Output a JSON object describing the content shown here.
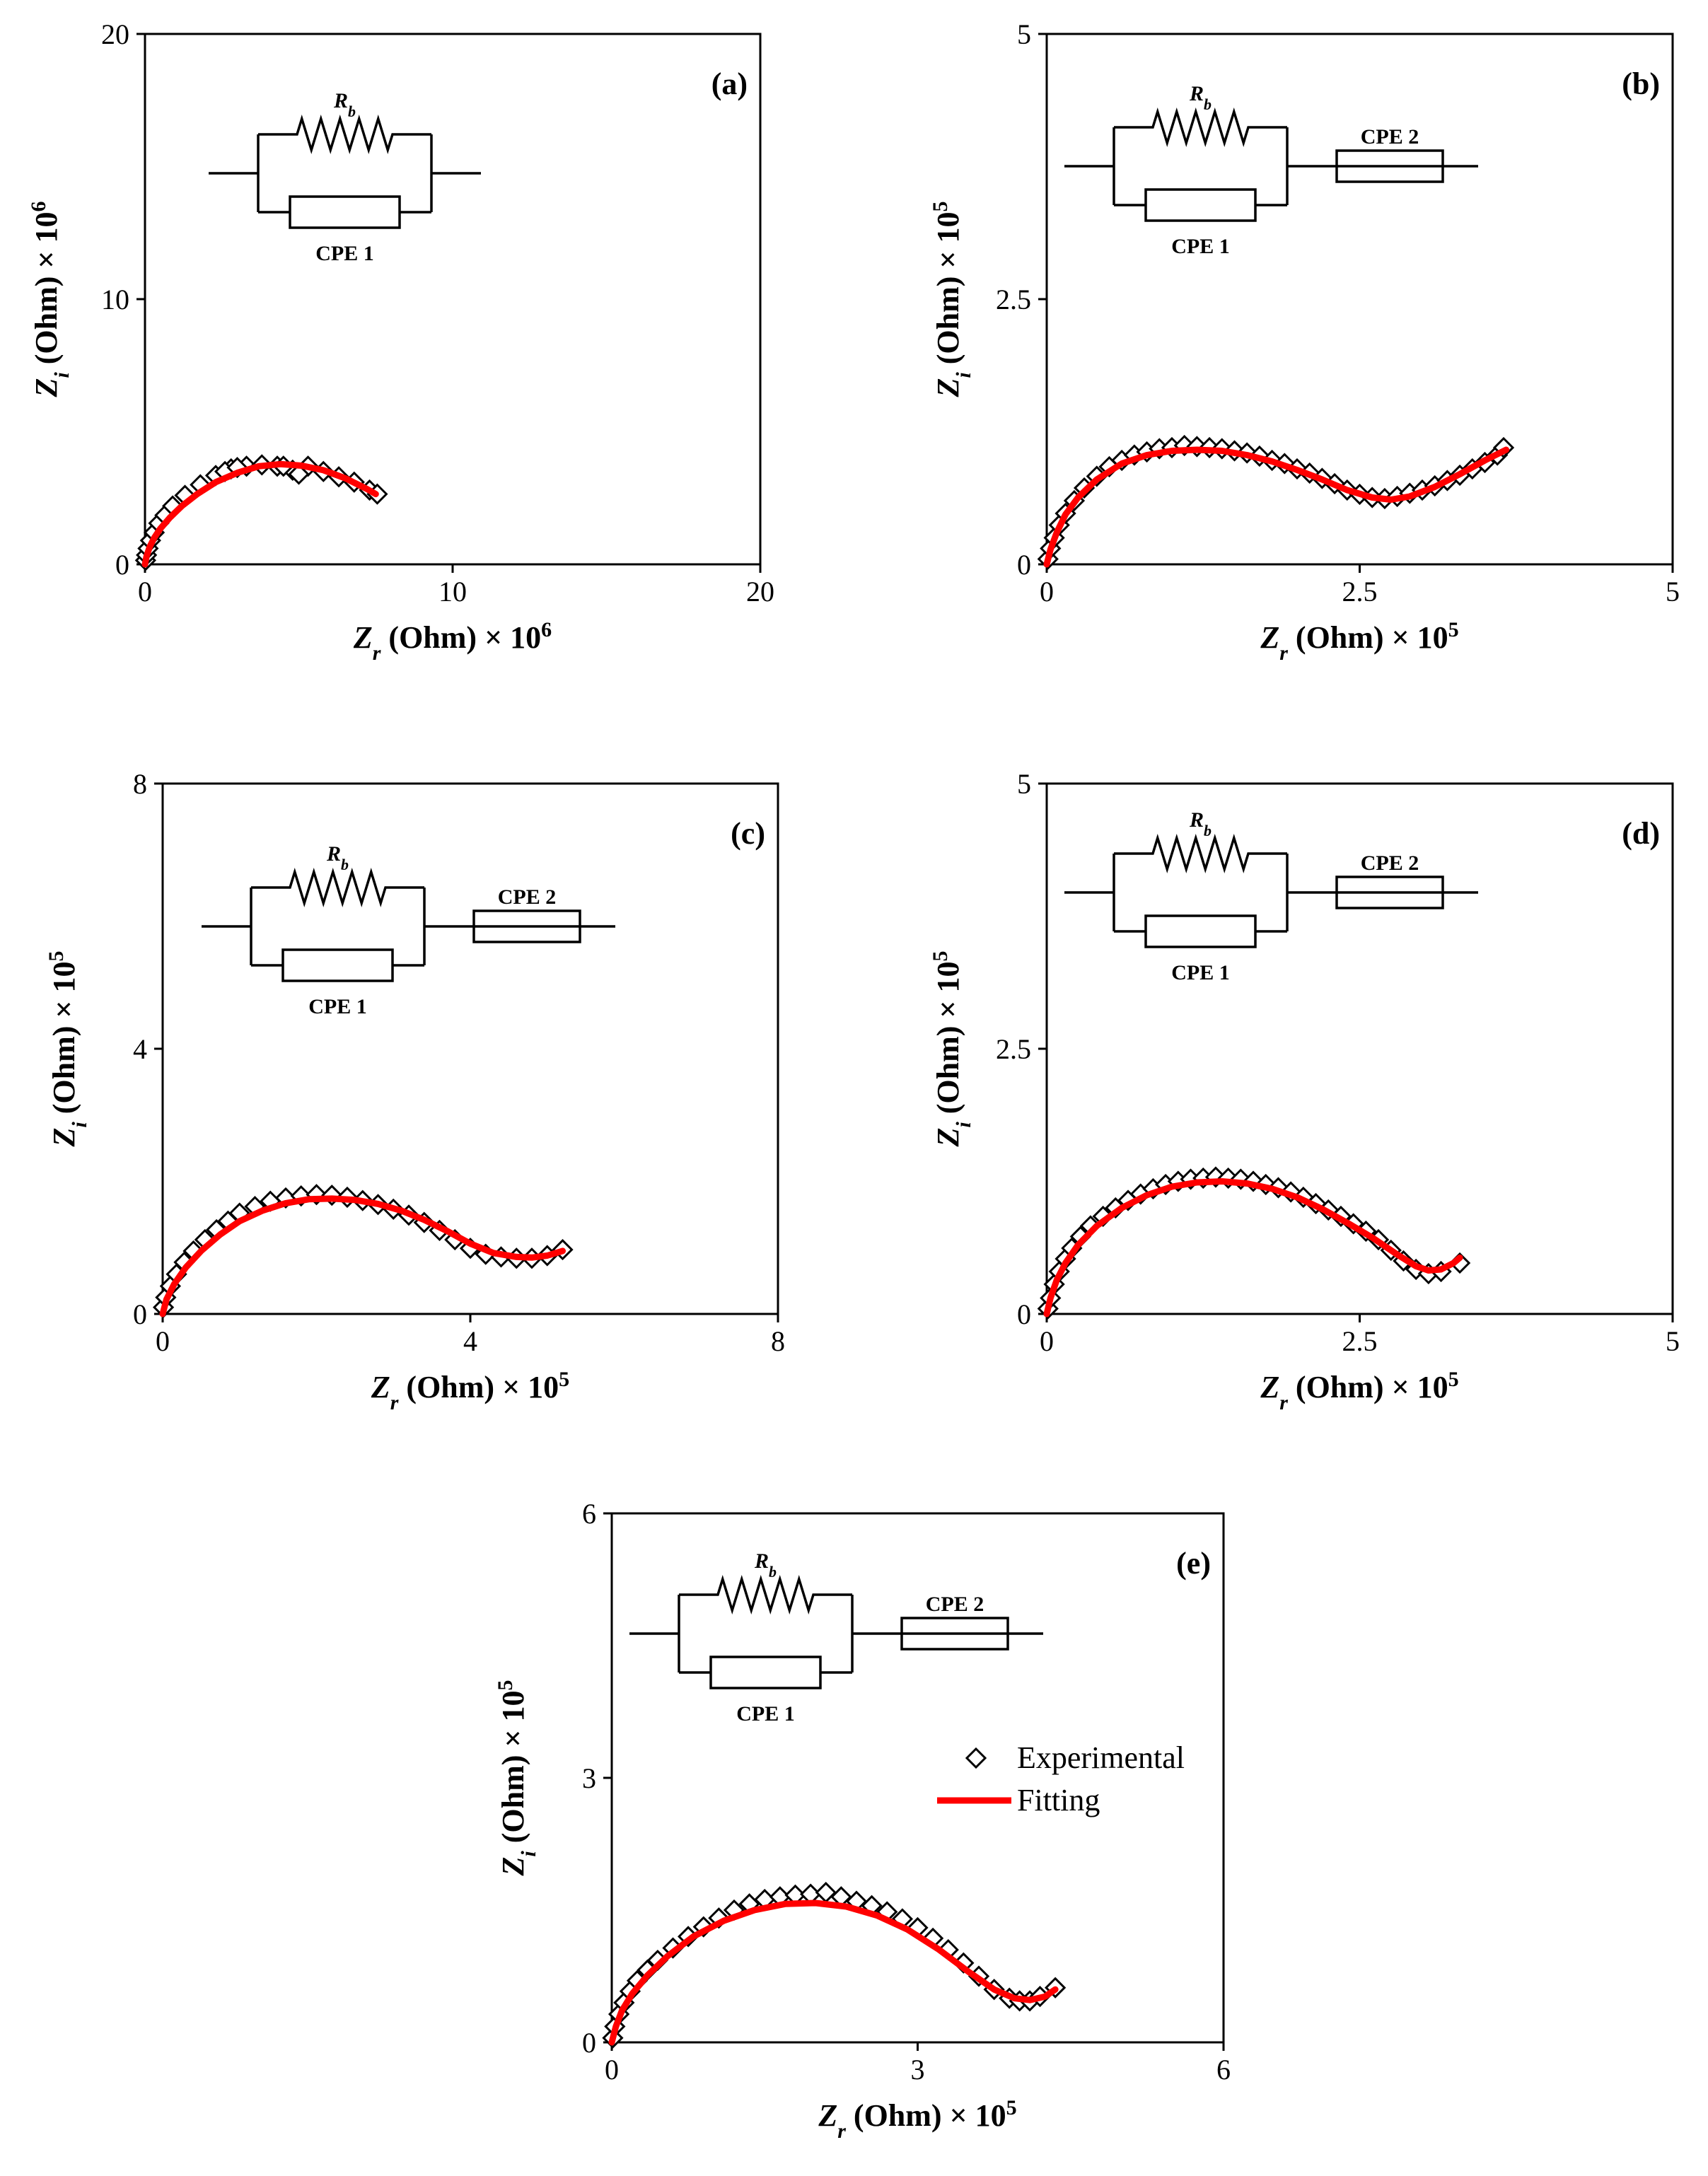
{
  "chart_data": [
    {
      "type": "scatter",
      "panel_label": "(a)",
      "xlabel_var": "Z",
      "xlabel_sub": "r",
      "xlabel_text": " (Ohm) × 10",
      "xlabel_exp": "6",
      "ylabel_var": "Z",
      "ylabel_sub": "i",
      "ylabel_text": " (Ohm) × 10",
      "ylabel_exp": "6",
      "xlim": [
        0,
        20
      ],
      "ylim": [
        0,
        20
      ],
      "xticks": [
        "0",
        "10",
        "20"
      ],
      "yticks": [
        "0",
        "10",
        "20"
      ],
      "circuit": {
        "resistor_label_var": "R",
        "resistor_label_sub": "b",
        "cpe1_label": "CPE 1",
        "cpe2_label": null
      },
      "series": [
        {
          "name": "Experimental",
          "marker": "diamond",
          "x": [
            0.02,
            0.05,
            0.1,
            0.18,
            0.3,
            0.45,
            0.65,
            0.9,
            1.3,
            1.8,
            2.3,
            2.8,
            3.3,
            3.8,
            4.3,
            4.8,
            5.3,
            5.8,
            6.3,
            6.8,
            7.3,
            7.55,
            2.6,
            3.0,
            4.5,
            5.0
          ],
          "y": [
            0.15,
            0.35,
            0.6,
            0.9,
            1.2,
            1.55,
            1.85,
            2.2,
            2.6,
            3.0,
            3.35,
            3.6,
            3.7,
            3.75,
            3.7,
            3.55,
            3.7,
            3.5,
            3.3,
            3.1,
            2.8,
            2.65,
            3.5,
            3.65,
            3.7,
            3.4
          ]
        },
        {
          "name": "Fitting",
          "type": "line",
          "x": [
            0,
            0.05,
            0.15,
            0.3,
            0.5,
            0.8,
            1.2,
            1.7,
            2.3,
            3.0,
            3.7,
            4.4,
            5.1,
            5.8,
            6.5,
            7.2,
            7.5
          ],
          "y": [
            0,
            0.3,
            0.65,
            1.0,
            1.35,
            1.75,
            2.2,
            2.65,
            3.1,
            3.45,
            3.7,
            3.78,
            3.72,
            3.55,
            3.25,
            2.85,
            2.65
          ]
        }
      ]
    },
    {
      "type": "scatter",
      "panel_label": "(b)",
      "xlabel_var": "Z",
      "xlabel_sub": "r",
      "xlabel_text": " (Ohm) × 10",
      "xlabel_exp": "5",
      "ylabel_var": "Z",
      "ylabel_sub": "i",
      "ylabel_text": " (Ohm) × 10",
      "ylabel_exp": "5",
      "xlim": [
        0,
        5
      ],
      "ylim": [
        0,
        5
      ],
      "xticks": [
        "0",
        "2.5",
        "5"
      ],
      "yticks": [
        "0",
        "2.5",
        "5"
      ],
      "circuit": {
        "resistor_label_var": "R",
        "resistor_label_sub": "b",
        "cpe1_label": "CPE 1",
        "cpe2_label": "CPE 2"
      },
      "series": [
        {
          "name": "Experimental",
          "marker": "diamond",
          "x": [
            0.01,
            0.03,
            0.06,
            0.1,
            0.15,
            0.22,
            0.3,
            0.4,
            0.5,
            0.6,
            0.7,
            0.8,
            0.9,
            1.0,
            1.1,
            1.2,
            1.3,
            1.4,
            1.5,
            1.6,
            1.7,
            1.8,
            1.9,
            2.0,
            2.1,
            2.2,
            2.3,
            2.4,
            2.5,
            2.6,
            2.7,
            2.8,
            2.9,
            3.0,
            3.1,
            3.2,
            3.3,
            3.4,
            3.5,
            3.6,
            3.65
          ],
          "y": [
            0.05,
            0.15,
            0.25,
            0.37,
            0.48,
            0.6,
            0.72,
            0.83,
            0.92,
            0.98,
            1.03,
            1.06,
            1.09,
            1.1,
            1.12,
            1.11,
            1.1,
            1.09,
            1.07,
            1.05,
            1.02,
            0.98,
            0.95,
            0.9,
            0.86,
            0.81,
            0.76,
            0.7,
            0.66,
            0.63,
            0.62,
            0.64,
            0.67,
            0.7,
            0.74,
            0.79,
            0.84,
            0.9,
            0.96,
            1.03,
            1.1
          ]
        },
        {
          "name": "Fitting",
          "type": "line",
          "x": [
            0,
            0.03,
            0.08,
            0.15,
            0.25,
            0.4,
            0.6,
            0.8,
            1.0,
            1.2,
            1.4,
            1.6,
            1.8,
            2.0,
            2.2,
            2.4,
            2.6,
            2.75,
            2.9,
            3.1,
            3.3,
            3.5,
            3.67
          ],
          "y": [
            0,
            0.14,
            0.3,
            0.47,
            0.63,
            0.8,
            0.95,
            1.03,
            1.07,
            1.08,
            1.07,
            1.03,
            0.97,
            0.89,
            0.8,
            0.7,
            0.63,
            0.61,
            0.64,
            0.73,
            0.85,
            0.98,
            1.08
          ]
        }
      ]
    },
    {
      "type": "scatter",
      "panel_label": "(c)",
      "xlabel_var": "Z",
      "xlabel_sub": "r",
      "xlabel_text": " (Ohm) × 10",
      "xlabel_exp": "5",
      "ylabel_var": "Z",
      "ylabel_sub": "i",
      "ylabel_text": " (Ohm) × 10",
      "ylabel_exp": "5",
      "xlim": [
        0,
        8
      ],
      "ylim": [
        0,
        8
      ],
      "xticks": [
        "0",
        "4",
        "8"
      ],
      "yticks": [
        "0",
        "4",
        "8"
      ],
      "circuit": {
        "resistor_label_var": "R",
        "resistor_label_sub": "b",
        "cpe1_label": "CPE 1",
        "cpe2_label": "CPE 2"
      },
      "series": [
        {
          "name": "Experimental",
          "marker": "diamond",
          "x": [
            0.01,
            0.04,
            0.1,
            0.18,
            0.28,
            0.4,
            0.55,
            0.7,
            0.85,
            1.0,
            1.2,
            1.4,
            1.6,
            1.8,
            2.0,
            2.2,
            2.4,
            2.6,
            2.8,
            3.0,
            3.2,
            3.4,
            3.6,
            3.8,
            4.0,
            4.2,
            4.4,
            4.6,
            4.8,
            5.0,
            5.2
          ],
          "y": [
            0.1,
            0.25,
            0.42,
            0.6,
            0.78,
            0.95,
            1.12,
            1.27,
            1.4,
            1.52,
            1.62,
            1.7,
            1.75,
            1.78,
            1.8,
            1.79,
            1.76,
            1.71,
            1.65,
            1.58,
            1.49,
            1.38,
            1.26,
            1.12,
            0.99,
            0.9,
            0.86,
            0.84,
            0.84,
            0.88,
            0.97
          ]
        },
        {
          "name": "Fitting",
          "type": "line",
          "x": [
            0,
            0.05,
            0.15,
            0.3,
            0.5,
            0.75,
            1.0,
            1.3,
            1.6,
            1.9,
            2.2,
            2.5,
            2.8,
            3.1,
            3.4,
            3.7,
            4.0,
            4.3,
            4.6,
            4.8,
            5.0,
            5.2
          ],
          "y": [
            0,
            0.22,
            0.45,
            0.7,
            0.95,
            1.2,
            1.4,
            1.56,
            1.67,
            1.73,
            1.74,
            1.72,
            1.66,
            1.56,
            1.42,
            1.25,
            1.06,
            0.92,
            0.86,
            0.85,
            0.88,
            0.95
          ]
        }
      ]
    },
    {
      "type": "scatter",
      "panel_label": "(d)",
      "xlabel_var": "Z",
      "xlabel_sub": "r",
      "xlabel_text": " (Ohm) × 10",
      "xlabel_exp": "5",
      "ylabel_var": "Z",
      "ylabel_sub": "i",
      "ylabel_text": " (Ohm) × 10",
      "ylabel_exp": "5",
      "xlim": [
        0,
        5
      ],
      "ylim": [
        0,
        5
      ],
      "xticks": [
        "0",
        "2.5",
        "5"
      ],
      "yticks": [
        "0",
        "2.5",
        "5"
      ],
      "circuit": {
        "resistor_label_var": "R",
        "resistor_label_sub": "b",
        "cpe1_label": "CPE 1",
        "cpe2_label": "CPE 2"
      },
      "series": [
        {
          "name": "Experimental",
          "marker": "diamond",
          "x": [
            0.01,
            0.03,
            0.06,
            0.1,
            0.15,
            0.2,
            0.27,
            0.35,
            0.45,
            0.55,
            0.65,
            0.75,
            0.85,
            0.95,
            1.05,
            1.15,
            1.25,
            1.35,
            1.45,
            1.55,
            1.65,
            1.75,
            1.85,
            1.95,
            2.05,
            2.15,
            2.25,
            2.35,
            2.45,
            2.55,
            2.65,
            2.75,
            2.85,
            2.95,
            3.05,
            3.15,
            3.3
          ],
          "y": [
            0.05,
            0.15,
            0.28,
            0.4,
            0.52,
            0.62,
            0.73,
            0.83,
            0.92,
            1.0,
            1.07,
            1.13,
            1.18,
            1.22,
            1.25,
            1.27,
            1.28,
            1.29,
            1.28,
            1.27,
            1.25,
            1.22,
            1.19,
            1.15,
            1.1,
            1.04,
            0.98,
            0.92,
            0.85,
            0.78,
            0.7,
            0.6,
            0.5,
            0.42,
            0.38,
            0.4,
            0.48
          ]
        },
        {
          "name": "Fitting",
          "type": "line",
          "x": [
            0,
            0.03,
            0.08,
            0.15,
            0.25,
            0.4,
            0.6,
            0.8,
            1.0,
            1.2,
            1.4,
            1.6,
            1.8,
            2.0,
            2.2,
            2.4,
            2.6,
            2.8,
            2.95,
            3.05,
            3.15,
            3.25,
            3.3
          ],
          "y": [
            0,
            0.15,
            0.32,
            0.48,
            0.65,
            0.83,
            1.0,
            1.12,
            1.2,
            1.24,
            1.25,
            1.23,
            1.18,
            1.1,
            0.99,
            0.86,
            0.72,
            0.56,
            0.45,
            0.41,
            0.42,
            0.48,
            0.53
          ]
        }
      ]
    },
    {
      "type": "scatter",
      "panel_label": "(e)",
      "xlabel_var": "Z",
      "xlabel_sub": "r",
      "xlabel_text": " (Ohm) × 10",
      "xlabel_exp": "5",
      "ylabel_var": "Z",
      "ylabel_sub": "i",
      "ylabel_text": " (Ohm) × 10",
      "ylabel_exp": "5",
      "xlim": [
        0,
        6
      ],
      "ylim": [
        0,
        6
      ],
      "xticks": [
        "0",
        "3",
        "6"
      ],
      "yticks": [
        "0",
        "3",
        "6"
      ],
      "circuit": {
        "resistor_label_var": "R",
        "resistor_label_sub": "b",
        "cpe1_label": "CPE 1",
        "cpe2_label": "CPE 2"
      },
      "legend": {
        "position": "right",
        "entries": [
          "Experimental",
          "Fitting"
        ]
      },
      "series": [
        {
          "name": "Experimental",
          "marker": "diamond",
          "x": [
            0.01,
            0.03,
            0.07,
            0.12,
            0.18,
            0.25,
            0.35,
            0.45,
            0.6,
            0.75,
            0.9,
            1.05,
            1.2,
            1.35,
            1.5,
            1.65,
            1.8,
            1.95,
            2.1,
            2.25,
            2.4,
            2.55,
            2.7,
            2.85,
            3.0,
            3.15,
            3.3,
            3.45,
            3.6,
            3.75,
            3.9,
            4.0,
            4.1,
            4.2,
            4.35
          ],
          "y": [
            0.05,
            0.18,
            0.32,
            0.45,
            0.58,
            0.7,
            0.82,
            0.93,
            1.07,
            1.2,
            1.31,
            1.41,
            1.5,
            1.57,
            1.62,
            1.65,
            1.67,
            1.68,
            1.7,
            1.65,
            1.6,
            1.55,
            1.48,
            1.4,
            1.3,
            1.18,
            1.05,
            0.9,
            0.75,
            0.6,
            0.5,
            0.47,
            0.47,
            0.52,
            0.62
          ]
        },
        {
          "name": "Fitting",
          "type": "line",
          "x": [
            0,
            0.04,
            0.1,
            0.2,
            0.35,
            0.55,
            0.8,
            1.1,
            1.4,
            1.7,
            2.0,
            2.3,
            2.6,
            2.9,
            3.2,
            3.5,
            3.75,
            3.95,
            4.1,
            4.25,
            4.35
          ],
          "y": [
            0,
            0.18,
            0.36,
            0.55,
            0.76,
            0.98,
            1.2,
            1.38,
            1.5,
            1.57,
            1.58,
            1.54,
            1.44,
            1.28,
            1.06,
            0.8,
            0.6,
            0.5,
            0.48,
            0.52,
            0.6
          ]
        }
      ]
    }
  ]
}
